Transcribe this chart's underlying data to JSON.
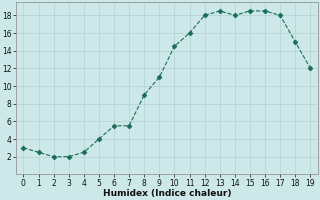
{
  "x": [
    0,
    1,
    2,
    3,
    4,
    5,
    6,
    7,
    8,
    9,
    10,
    11,
    12,
    13,
    14,
    15,
    16,
    17,
    18,
    19
  ],
  "y": [
    3,
    2.5,
    2,
    2,
    2.5,
    4,
    5.5,
    5.5,
    9,
    11,
    14.5,
    16,
    18,
    18.5,
    18,
    18.5,
    18.5,
    18,
    15,
    12
  ],
  "xlabel": "Humidex (Indice chaleur)",
  "xlim": [
    -0.5,
    19.5
  ],
  "ylim": [
    0,
    19.5
  ],
  "yticks": [
    2,
    4,
    6,
    8,
    10,
    12,
    14,
    16,
    18
  ],
  "xticks": [
    0,
    1,
    2,
    3,
    4,
    5,
    6,
    7,
    8,
    9,
    10,
    11,
    12,
    13,
    14,
    15,
    16,
    17,
    18,
    19
  ],
  "line_color": "#1a6b5a",
  "marker": "D",
  "marker_size": 2.5,
  "bg_color": "#cce8e8",
  "grid_major_color": "#b8d4d4",
  "grid_minor_color": "#d8ecec",
  "fig_bg": "#cce8e8",
  "tick_fontsize": 5.5,
  "xlabel_fontsize": 6.5
}
